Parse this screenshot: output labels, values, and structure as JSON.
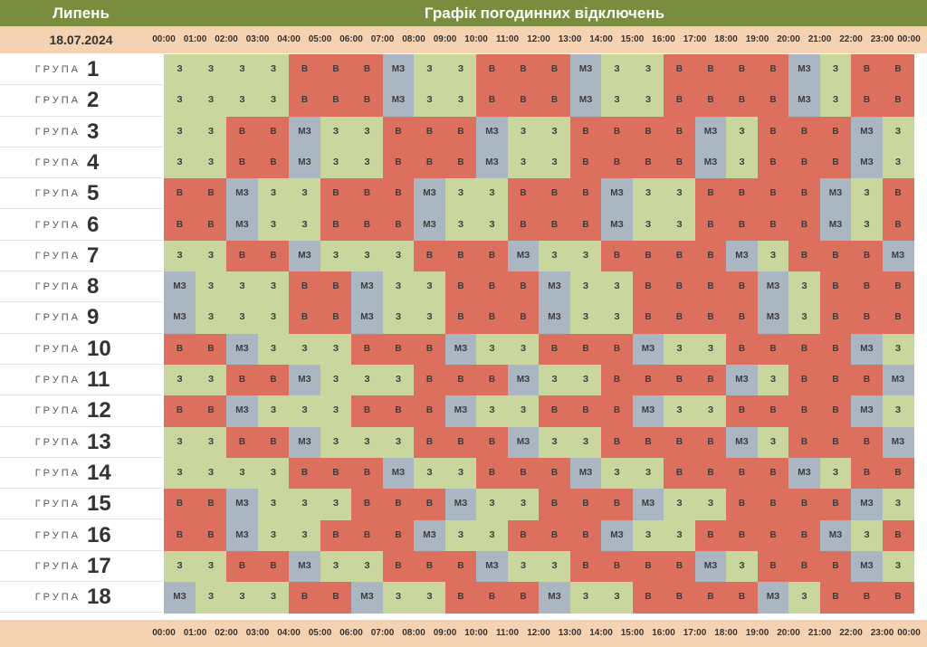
{
  "header": {
    "month": "Липень",
    "title": "Графік погодинних відключень"
  },
  "date": "18.07.2024",
  "hours": [
    "00:00",
    "01:00",
    "02:00",
    "03:00",
    "04:00",
    "05:00",
    "06:00",
    "07:00",
    "08:00",
    "09:00",
    "10:00",
    "11:00",
    "12:00",
    "13:00",
    "14:00",
    "15:00",
    "16:00",
    "17:00",
    "18:00",
    "19:00",
    "20:00",
    "21:00",
    "22:00",
    "23:00",
    "00:00"
  ],
  "group_word": "ГРУПА",
  "legend": {
    "v": "В",
    "z": "З",
    "mz": "МЗ"
  },
  "colors": {
    "v": "#dd6f5f",
    "z": "#c9d79e",
    "mz": "#aab7c2",
    "header": "#7a8d3f",
    "hours_bar": "#f5d2b1"
  },
  "groups": [
    {
      "number": "1",
      "cells": [
        "З",
        "З",
        "З",
        "З",
        "В",
        "В",
        "В",
        "МЗ",
        "З",
        "З",
        "В",
        "В",
        "В",
        "МЗ",
        "З",
        "З",
        "В",
        "В",
        "В",
        "В",
        "МЗ",
        "З",
        "В",
        "В"
      ]
    },
    {
      "number": "2",
      "cells": [
        "З",
        "З",
        "З",
        "З",
        "В",
        "В",
        "В",
        "МЗ",
        "З",
        "З",
        "В",
        "В",
        "В",
        "МЗ",
        "З",
        "З",
        "В",
        "В",
        "В",
        "В",
        "МЗ",
        "З",
        "В",
        "В"
      ]
    },
    {
      "number": "3",
      "cells": [
        "З",
        "З",
        "В",
        "В",
        "МЗ",
        "З",
        "З",
        "В",
        "В",
        "В",
        "МЗ",
        "З",
        "З",
        "В",
        "В",
        "В",
        "В",
        "МЗ",
        "З",
        "В",
        "В",
        "В",
        "МЗ",
        "З"
      ]
    },
    {
      "number": "4",
      "cells": [
        "З",
        "З",
        "В",
        "В",
        "МЗ",
        "З",
        "З",
        "В",
        "В",
        "В",
        "МЗ",
        "З",
        "З",
        "В",
        "В",
        "В",
        "В",
        "МЗ",
        "З",
        "В",
        "В",
        "В",
        "МЗ",
        "З"
      ]
    },
    {
      "number": "5",
      "cells": [
        "В",
        "В",
        "МЗ",
        "З",
        "З",
        "В",
        "В",
        "В",
        "МЗ",
        "З",
        "З",
        "В",
        "В",
        "В",
        "МЗ",
        "З",
        "З",
        "В",
        "В",
        "В",
        "В",
        "МЗ",
        "З",
        "В"
      ]
    },
    {
      "number": "6",
      "cells": [
        "В",
        "В",
        "МЗ",
        "З",
        "З",
        "В",
        "В",
        "В",
        "МЗ",
        "З",
        "З",
        "В",
        "В",
        "В",
        "МЗ",
        "З",
        "З",
        "В",
        "В",
        "В",
        "В",
        "МЗ",
        "З",
        "В"
      ]
    },
    {
      "number": "7",
      "cells": [
        "З",
        "З",
        "В",
        "В",
        "МЗ",
        "З",
        "З",
        "З",
        "В",
        "В",
        "В",
        "МЗ",
        "З",
        "З",
        "В",
        "В",
        "В",
        "В",
        "МЗ",
        "З",
        "В",
        "В",
        "В",
        "МЗ"
      ]
    },
    {
      "number": "8",
      "cells": [
        "МЗ",
        "З",
        "З",
        "З",
        "В",
        "В",
        "МЗ",
        "З",
        "З",
        "В",
        "В",
        "В",
        "МЗ",
        "З",
        "З",
        "В",
        "В",
        "В",
        "В",
        "МЗ",
        "З",
        "В",
        "В",
        "В"
      ]
    },
    {
      "number": "9",
      "cells": [
        "МЗ",
        "З",
        "З",
        "З",
        "В",
        "В",
        "МЗ",
        "З",
        "З",
        "В",
        "В",
        "В",
        "МЗ",
        "З",
        "З",
        "В",
        "В",
        "В",
        "В",
        "МЗ",
        "З",
        "В",
        "В",
        "В"
      ]
    },
    {
      "number": "10",
      "cells": [
        "В",
        "В",
        "МЗ",
        "З",
        "З",
        "З",
        "В",
        "В",
        "В",
        "МЗ",
        "З",
        "З",
        "В",
        "В",
        "В",
        "МЗ",
        "З",
        "З",
        "В",
        "В",
        "В",
        "В",
        "МЗ",
        "З"
      ]
    },
    {
      "number": "11",
      "cells": [
        "З",
        "З",
        "В",
        "В",
        "МЗ",
        "З",
        "З",
        "З",
        "В",
        "В",
        "В",
        "МЗ",
        "З",
        "З",
        "В",
        "В",
        "В",
        "В",
        "МЗ",
        "З",
        "В",
        "В",
        "В",
        "МЗ"
      ]
    },
    {
      "number": "12",
      "cells": [
        "В",
        "В",
        "МЗ",
        "З",
        "З",
        "З",
        "В",
        "В",
        "В",
        "МЗ",
        "З",
        "З",
        "В",
        "В",
        "В",
        "МЗ",
        "З",
        "З",
        "В",
        "В",
        "В",
        "В",
        "МЗ",
        "З"
      ]
    },
    {
      "number": "13",
      "cells": [
        "З",
        "З",
        "В",
        "В",
        "МЗ",
        "З",
        "З",
        "З",
        "В",
        "В",
        "В",
        "МЗ",
        "З",
        "З",
        "В",
        "В",
        "В",
        "В",
        "МЗ",
        "З",
        "В",
        "В",
        "В",
        "МЗ"
      ]
    },
    {
      "number": "14",
      "cells": [
        "З",
        "З",
        "З",
        "З",
        "В",
        "В",
        "В",
        "МЗ",
        "З",
        "З",
        "В",
        "В",
        "В",
        "МЗ",
        "З",
        "З",
        "В",
        "В",
        "В",
        "В",
        "МЗ",
        "З",
        "В",
        "В"
      ]
    },
    {
      "number": "15",
      "cells": [
        "В",
        "В",
        "МЗ",
        "З",
        "З",
        "З",
        "В",
        "В",
        "В",
        "МЗ",
        "З",
        "З",
        "В",
        "В",
        "В",
        "МЗ",
        "З",
        "З",
        "В",
        "В",
        "В",
        "В",
        "МЗ",
        "З"
      ]
    },
    {
      "number": "16",
      "cells": [
        "В",
        "В",
        "МЗ",
        "З",
        "З",
        "В",
        "В",
        "В",
        "МЗ",
        "З",
        "З",
        "В",
        "В",
        "В",
        "МЗ",
        "З",
        "З",
        "В",
        "В",
        "В",
        "В",
        "МЗ",
        "З",
        "В"
      ]
    },
    {
      "number": "17",
      "cells": [
        "З",
        "З",
        "В",
        "В",
        "МЗ",
        "З",
        "З",
        "В",
        "В",
        "В",
        "МЗ",
        "З",
        "З",
        "В",
        "В",
        "В",
        "В",
        "МЗ",
        "З",
        "В",
        "В",
        "В",
        "МЗ",
        "З"
      ]
    },
    {
      "number": "18",
      "cells": [
        "МЗ",
        "З",
        "З",
        "З",
        "В",
        "В",
        "МЗ",
        "З",
        "З",
        "В",
        "В",
        "В",
        "МЗ",
        "З",
        "З",
        "В",
        "В",
        "В",
        "В",
        "МЗ",
        "З",
        "В",
        "В",
        "В"
      ]
    }
  ]
}
